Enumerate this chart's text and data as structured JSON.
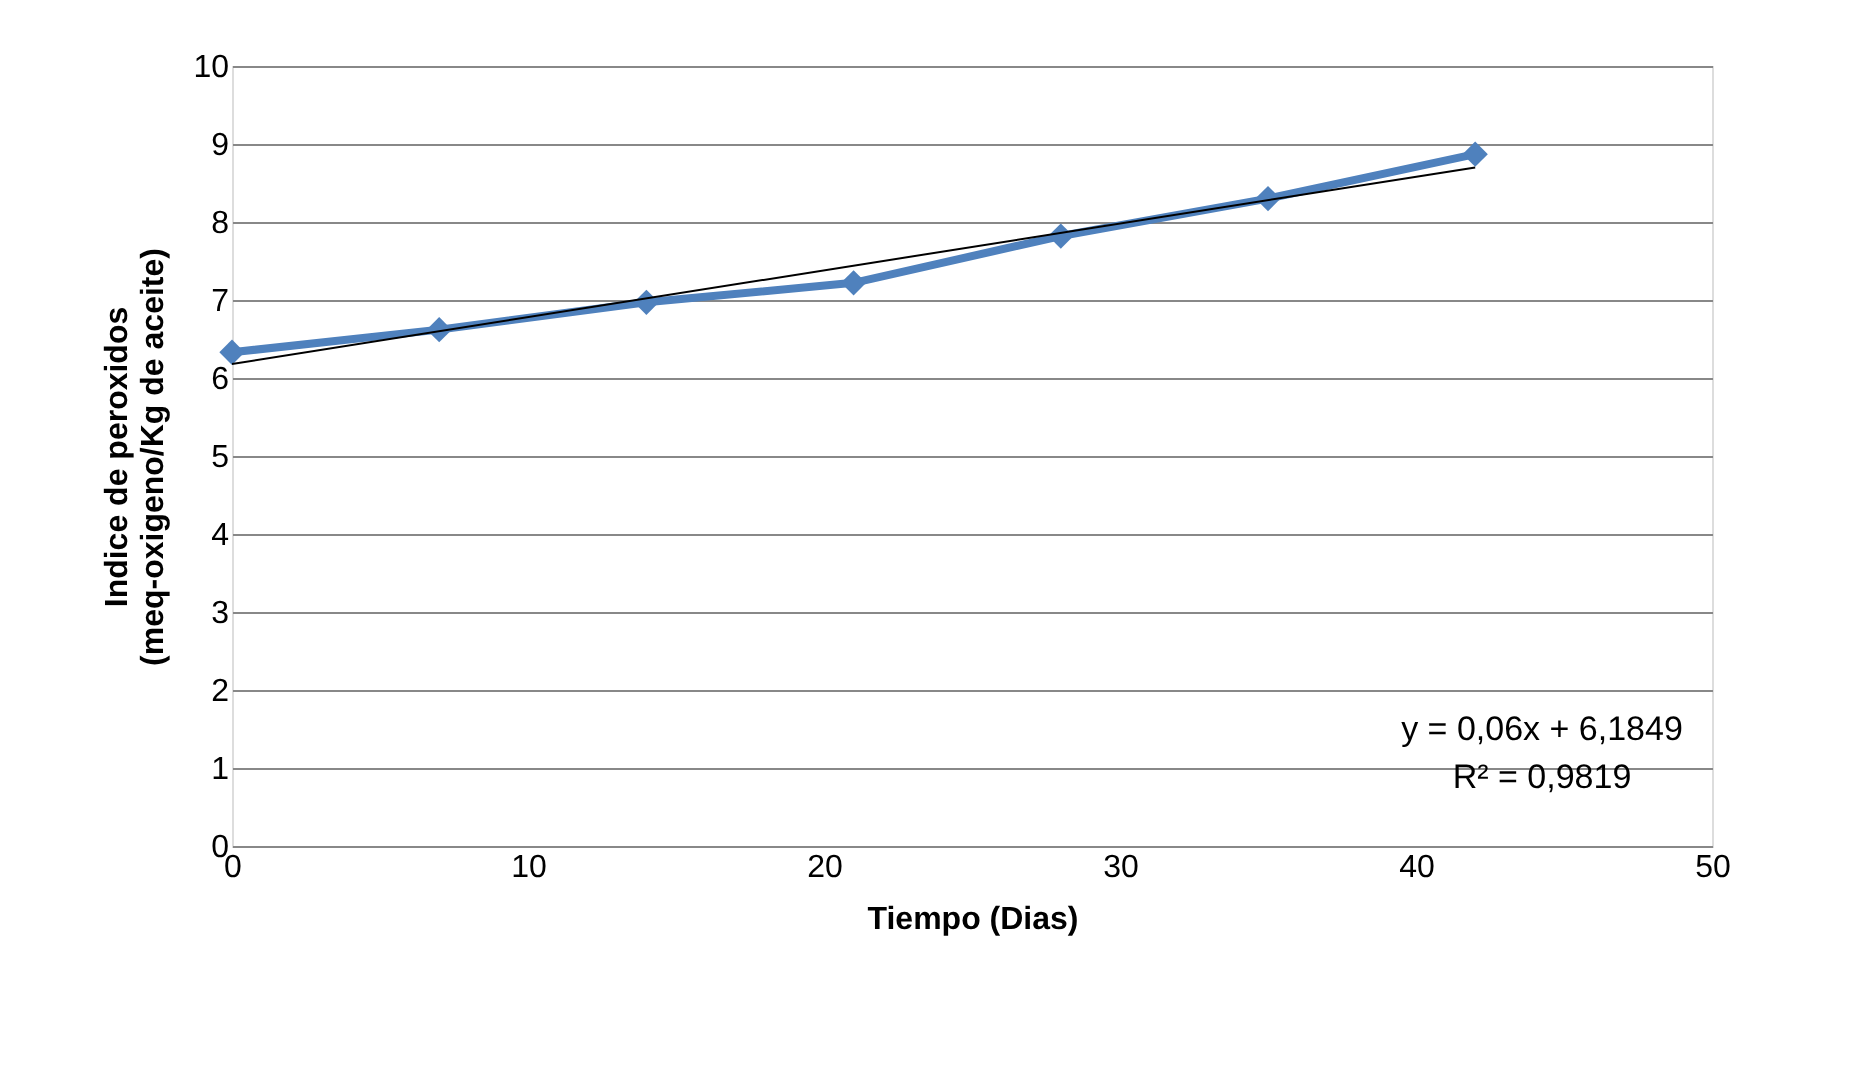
{
  "chart_data": {
    "type": "line",
    "xlabel": "Tiempo  (Dias)",
    "ylabel": "Indice de peroxidos\n(meq-oxigeno/Kg de aceite)",
    "xlim": [
      0,
      50
    ],
    "xticks": [
      0,
      10,
      20,
      30,
      40,
      50
    ],
    "ylim": [
      0,
      10
    ],
    "yticks": [
      0,
      1,
      2,
      3,
      4,
      5,
      6,
      7,
      8,
      9,
      10
    ],
    "grid": "y",
    "series": [
      {
        "color": "#4f81bd",
        "marker": "diamond",
        "x": [
          0,
          7,
          14,
          21,
          28,
          35,
          42
        ],
        "values": [
          6.33,
          6.62,
          6.97,
          7.22,
          7.82,
          8.3,
          8.87
        ]
      },
      {
        "color": "#000000",
        "marker": "none",
        "x": [
          0,
          42
        ],
        "values": [
          6.18,
          8.7
        ]
      }
    ],
    "annotations": [
      "y = 0,06x + 6,1849",
      "R² = 0,9819"
    ]
  }
}
